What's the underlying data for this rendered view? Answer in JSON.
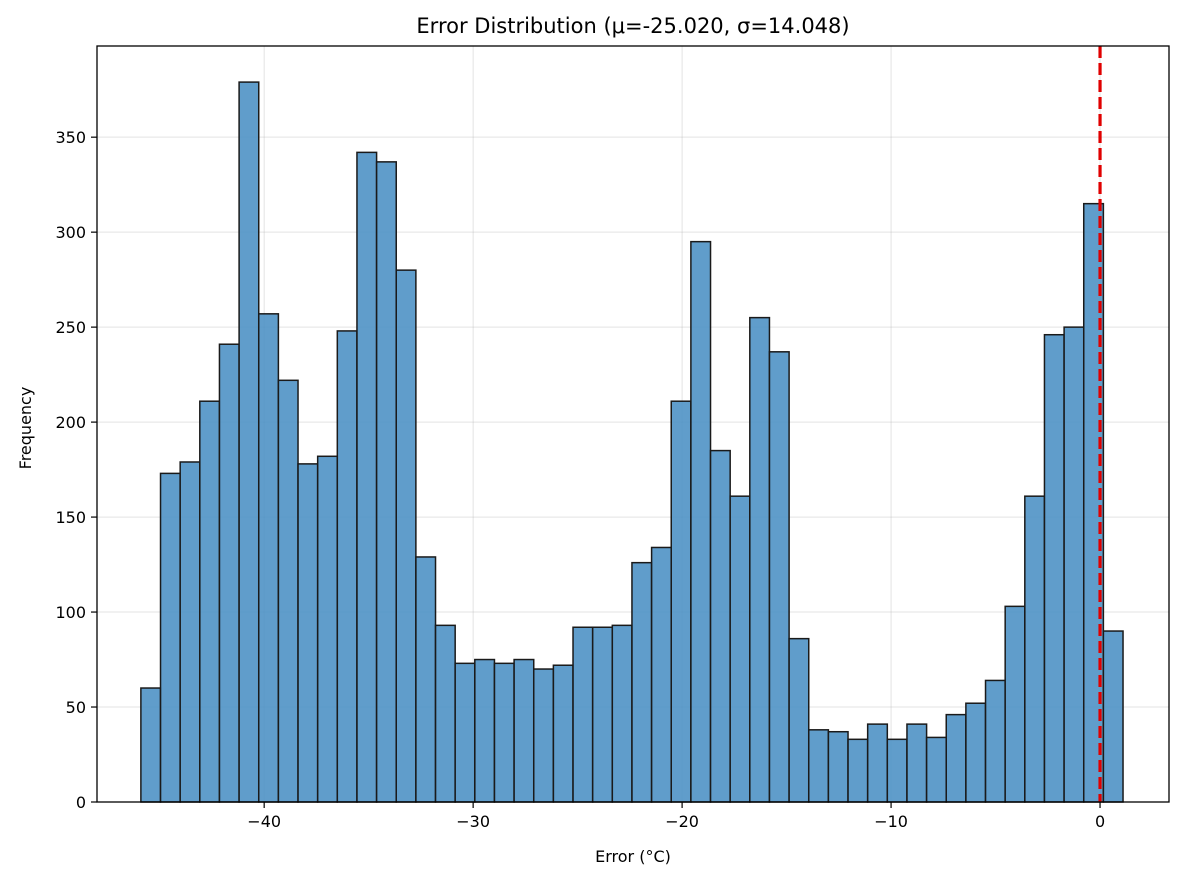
{
  "chart_data": {
    "type": "bar",
    "title": "Error Distribution (μ=-25.020, σ=14.048)",
    "xlabel": "Error (°C)",
    "ylabel": "Frequency",
    "xlim": [
      -48,
      3.3
    ],
    "ylim": [
      0,
      398
    ],
    "grid": true,
    "bin_start": -45.9,
    "bin_width": 0.94,
    "values": [
      60,
      173,
      179,
      211,
      241,
      379,
      257,
      222,
      178,
      182,
      248,
      342,
      337,
      280,
      129,
      93,
      73,
      75,
      73,
      75,
      70,
      72,
      92,
      92,
      93,
      126,
      134,
      211,
      295,
      185,
      161,
      255,
      237,
      86,
      38,
      37,
      33,
      41,
      33,
      41,
      34,
      46,
      52,
      64,
      103,
      161,
      246,
      250,
      315,
      90
    ],
    "bar_color": "#4a8fc4",
    "edge_color": "#1a1a1a",
    "reference_line": {
      "x": 0,
      "color": "#e00000",
      "style": "dashed"
    },
    "x_ticks": [
      {
        "value": -40,
        "label": "−40"
      },
      {
        "value": -30,
        "label": "−30"
      },
      {
        "value": -20,
        "label": "−20"
      },
      {
        "value": -10,
        "label": "−10"
      },
      {
        "value": 0,
        "label": "0"
      }
    ],
    "y_ticks": [
      {
        "value": 0,
        "label": "0"
      },
      {
        "value": 50,
        "label": "50"
      },
      {
        "value": 100,
        "label": "100"
      },
      {
        "value": 150,
        "label": "150"
      },
      {
        "value": 200,
        "label": "200"
      },
      {
        "value": 250,
        "label": "250"
      },
      {
        "value": 300,
        "label": "300"
      },
      {
        "value": 350,
        "label": "350"
      }
    ]
  }
}
